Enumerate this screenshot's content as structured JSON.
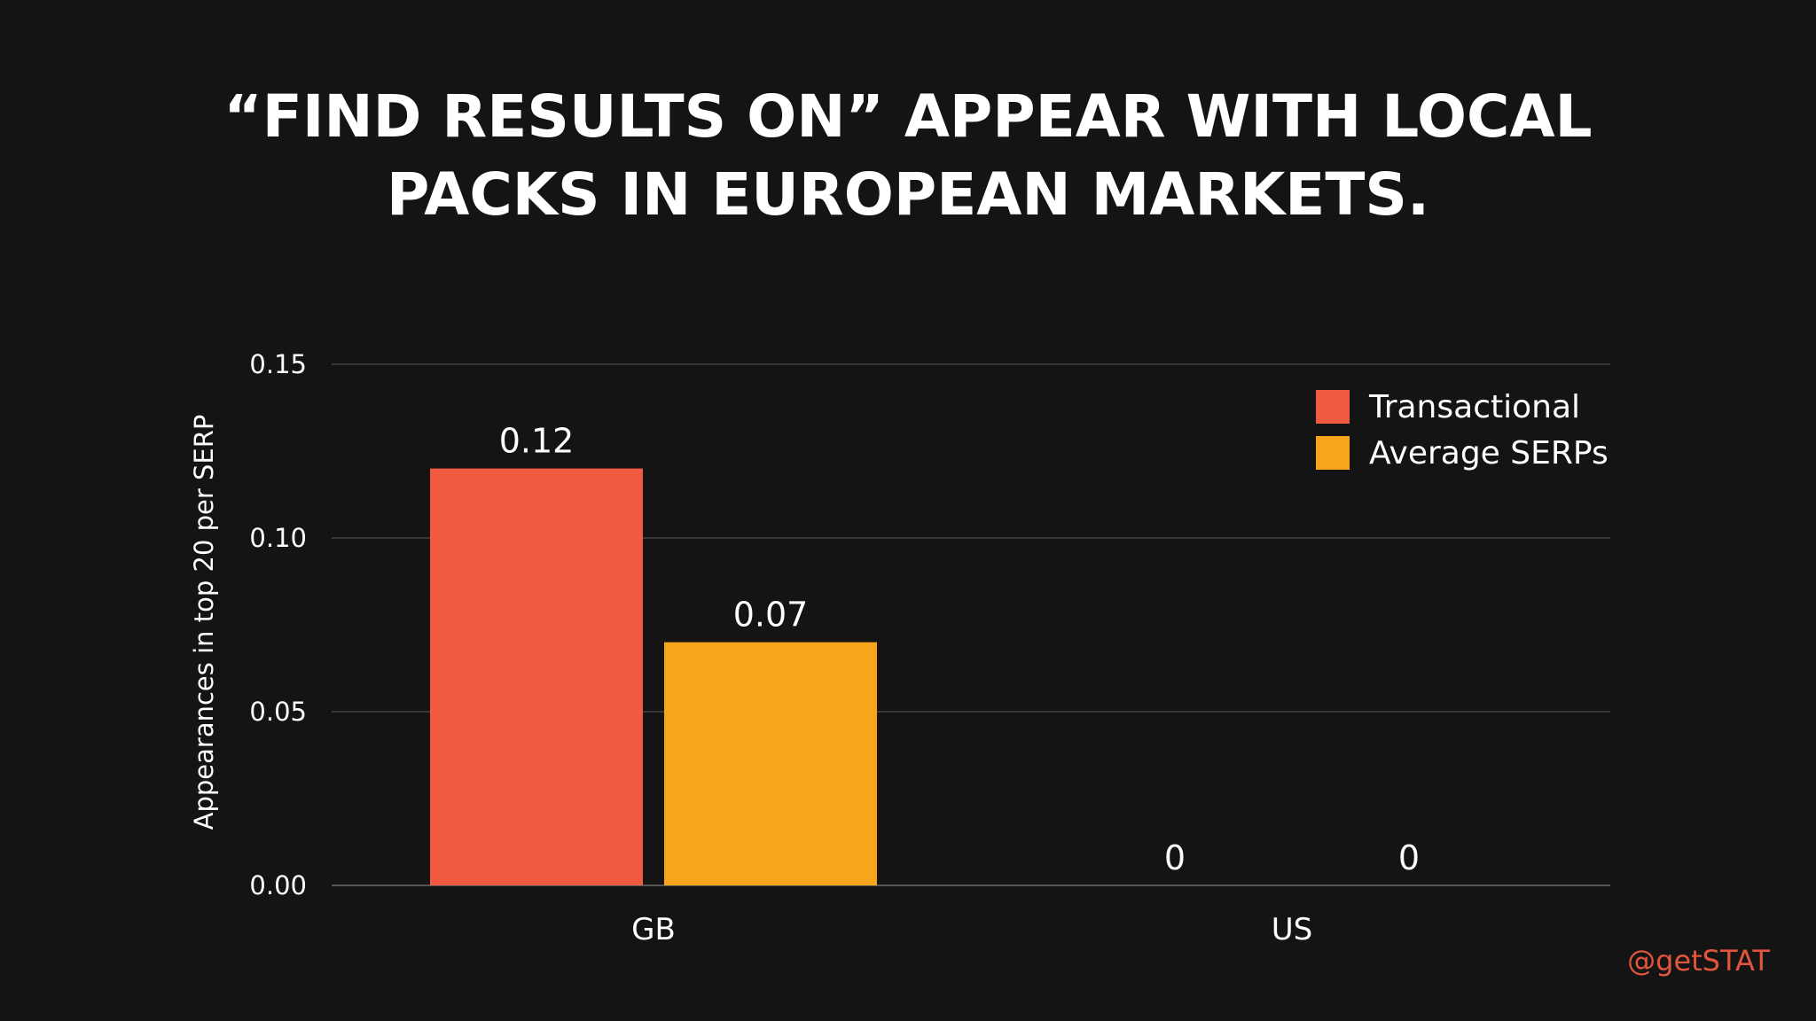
{
  "title_lines": [
    "“FIND RESULTS ON” APPEAR WITH LOCAL",
    "PACKS IN EUROPEAN MARKETS."
  ],
  "credit": "@getSTAT",
  "chart_data": {
    "type": "bar",
    "title": "“FIND RESULTS ON” APPEAR WITH LOCAL PACKS IN EUROPEAN MARKETS.",
    "categories": [
      "GB",
      "US"
    ],
    "series": [
      {
        "name": "Transactional",
        "values": [
          0.12,
          0
        ],
        "color": "#f05a40"
      },
      {
        "name": "Average SERPs",
        "values": [
          0.07,
          0
        ],
        "color": "#f8a51e"
      }
    ],
    "value_labels": [
      [
        "0.12",
        "0"
      ],
      [
        "0.07",
        "0"
      ]
    ],
    "ylabel": "Appearances in top 20 per SERP",
    "xlabel": "",
    "ylim": [
      0,
      0.15
    ],
    "yticks": [
      0,
      0.05,
      0.1,
      0.15
    ],
    "ytick_labels": [
      "0.00",
      "0.05",
      "0.10",
      "0.15"
    ],
    "grid": true,
    "legend_position": "top-right"
  }
}
